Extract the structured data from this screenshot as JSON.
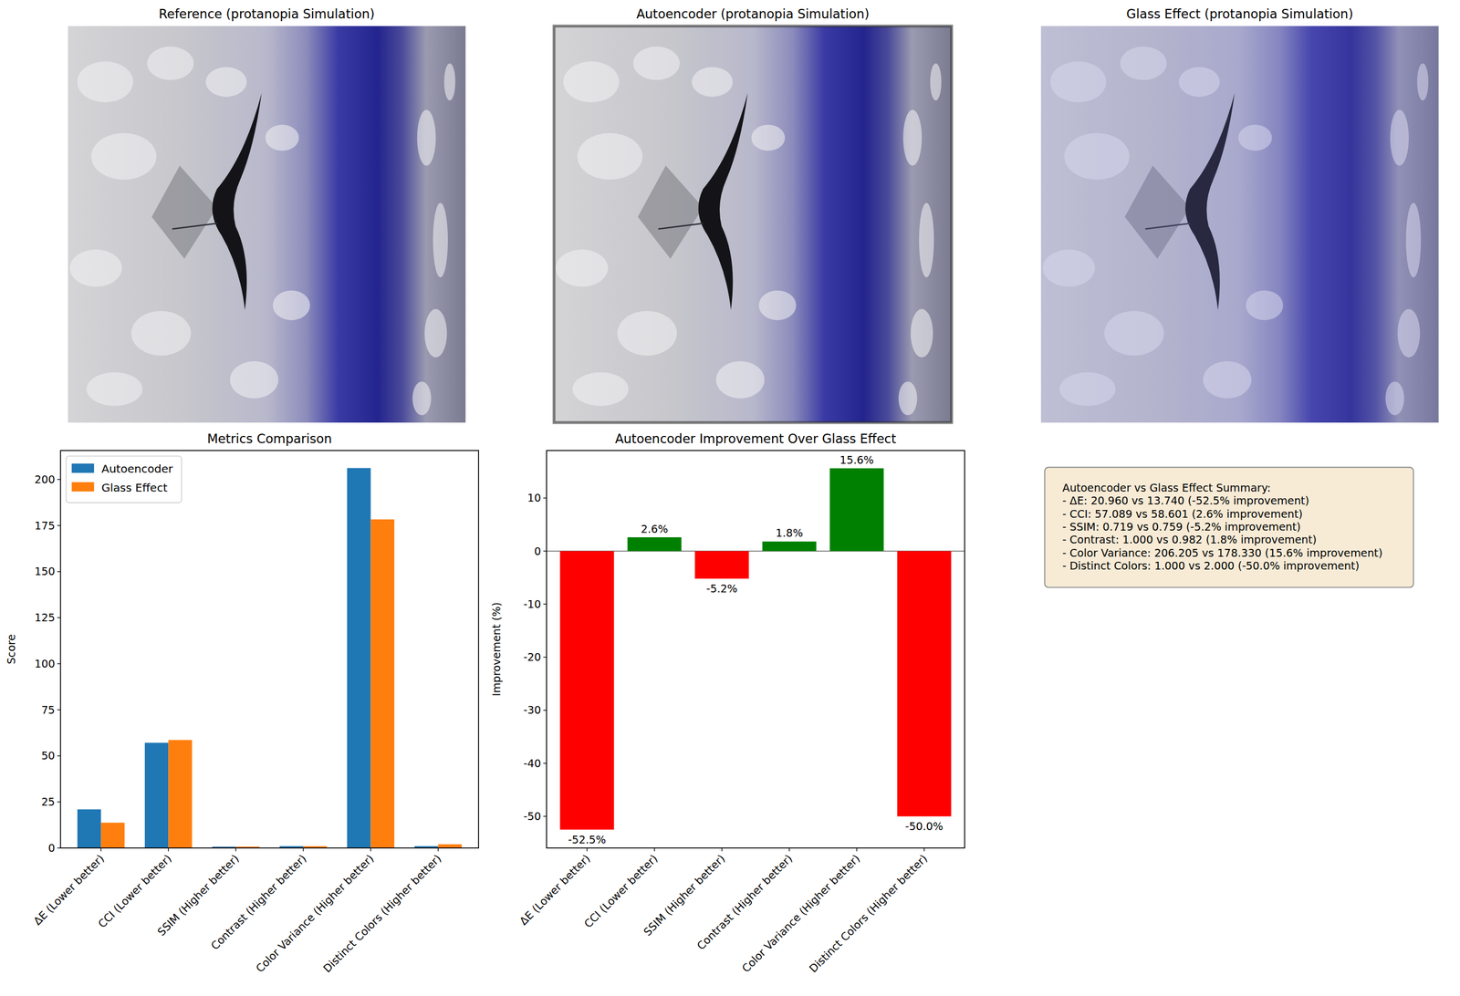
{
  "images": [
    {
      "title": "Reference (protanopia Simulation)"
    },
    {
      "title": "Autoencoder (protanopia Simulation)"
    },
    {
      "title": "Glass Effect (protanopia Simulation)"
    }
  ],
  "chart_data": [
    {
      "type": "bar",
      "title": "Metrics Comparison",
      "ylabel": "Score",
      "categories": [
        "ΔE (Lower better)",
        "CCI (Lower better)",
        "SSIM (Higher better)",
        "Contrast (Higher better)",
        "Color Variance (Higher better)",
        "Distinct Colors (Higher better)"
      ],
      "series": [
        {
          "name": "Autoencoder",
          "color": "#1f77b4",
          "values": [
            20.96,
            57.089,
            0.719,
            1.0,
            206.205,
            1.0
          ]
        },
        {
          "name": "Glass Effect",
          "color": "#ff7f0e",
          "values": [
            13.74,
            58.601,
            0.759,
            0.982,
            178.33,
            2.0
          ]
        }
      ],
      "ylim": [
        0,
        215.7
      ],
      "yticks": [
        0,
        25,
        50,
        75,
        100,
        125,
        150,
        175,
        200
      ],
      "legend": "upper left"
    },
    {
      "type": "bar",
      "title": "Autoencoder Improvement Over Glass Effect",
      "ylabel": "Improvement (%)",
      "categories": [
        "ΔE (Lower better)",
        "CCI (Lower better)",
        "SSIM (Higher better)",
        "Contrast (Higher better)",
        "Color Variance (Higher better)",
        "Distinct Colors (Higher better)"
      ],
      "values": [
        -52.5,
        2.6,
        -5.2,
        1.8,
        15.6,
        -50.0
      ],
      "colors": [
        "#ff0000",
        "#008000",
        "#ff0000",
        "#008000",
        "#008000",
        "#ff0000"
      ],
      "data_labels": true,
      "value_labels": [
        "-52.5%",
        "2.6%",
        "-5.2%",
        "1.8%",
        "15.6%",
        "-50.0%"
      ],
      "ylim": [
        -55.96,
        18.95
      ],
      "yticks": [
        -50,
        -40,
        -30,
        -20,
        -10,
        0,
        10
      ]
    }
  ],
  "summary": {
    "lines": [
      "Autoencoder vs Glass Effect Summary:",
      "- ΔE: 20.960 vs 13.740 (-52.5% improvement)",
      "- CCI: 57.089 vs 58.601 (2.6% improvement)",
      "- SSIM: 0.719 vs 0.759 (-5.2% improvement)",
      "- Contrast: 1.000 vs 0.982 (1.8% improvement)",
      "- Color Variance: 206.205 vs 178.330 (15.6% improvement)",
      "- Distinct Colors: 1.000 vs 2.000 (-50.0% improvement)"
    ]
  }
}
